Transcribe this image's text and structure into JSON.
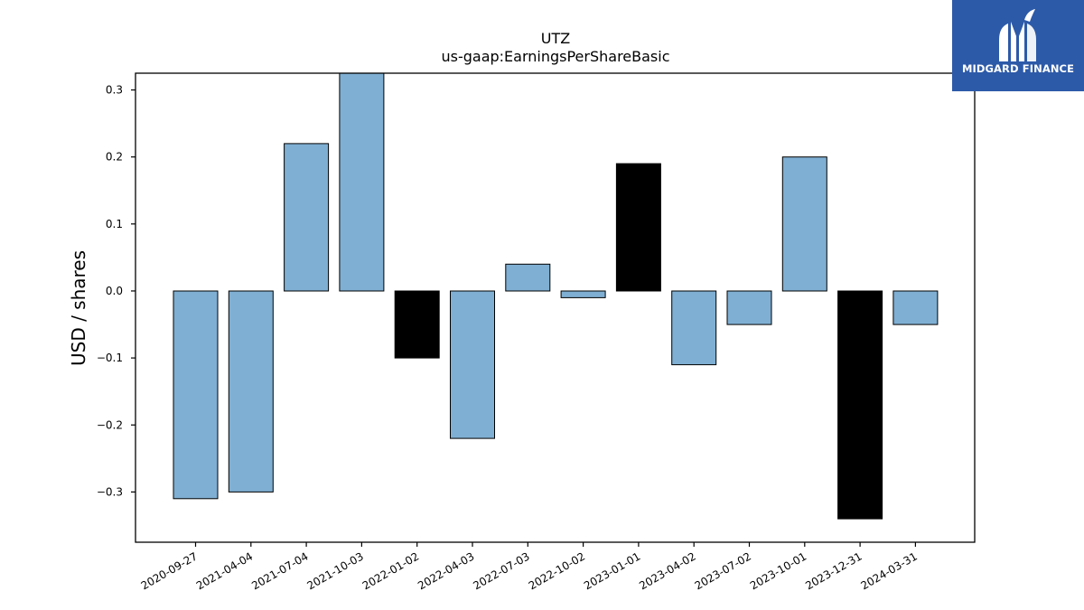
{
  "chart_data": {
    "type": "bar",
    "title": "UTZ",
    "subtitle": "us-gaap:EarningsPerShareBasic",
    "xlabel": "",
    "ylabel": "USD / shares",
    "ylim": [
      -0.375,
      0.325
    ],
    "yticks": [
      -0.3,
      -0.2,
      -0.1,
      0.0,
      0.1,
      0.2,
      0.3
    ],
    "ytick_labels": [
      "−0.3",
      "−0.2",
      "−0.1",
      "0.0",
      "0.1",
      "0.2",
      "0.3"
    ],
    "grid": false,
    "categories": [
      "2020-09-27",
      "2021-04-04",
      "2021-07-04",
      "2021-10-03",
      "2022-01-02",
      "2022-04-03",
      "2022-07-03",
      "2022-10-02",
      "2023-01-01",
      "2023-04-02",
      "2023-07-02",
      "2023-10-01",
      "2023-12-31",
      "2024-03-31"
    ],
    "values": [
      -0.31,
      -0.3,
      0.22,
      0.33,
      -0.1,
      -0.22,
      0.04,
      -0.01,
      0.19,
      -0.11,
      -0.05,
      0.2,
      -0.34,
      -0.05
    ],
    "bar_colors": [
      "#7fafd3",
      "#7fafd3",
      "#7fafd3",
      "#7fafd3",
      "#000000",
      "#7fafd3",
      "#7fafd3",
      "#7fafd3",
      "#000000",
      "#7fafd3",
      "#7fafd3",
      "#7fafd3",
      "#000000",
      "#7fafd3"
    ],
    "colors": {
      "quarter": "#7fafd3",
      "fiscal_year_end": "#000000",
      "edge": "#000000"
    }
  },
  "logo": {
    "text": "MIDGARD FINANCE",
    "background": "#2d5aa8",
    "icon": "midgard-logo-icon"
  }
}
